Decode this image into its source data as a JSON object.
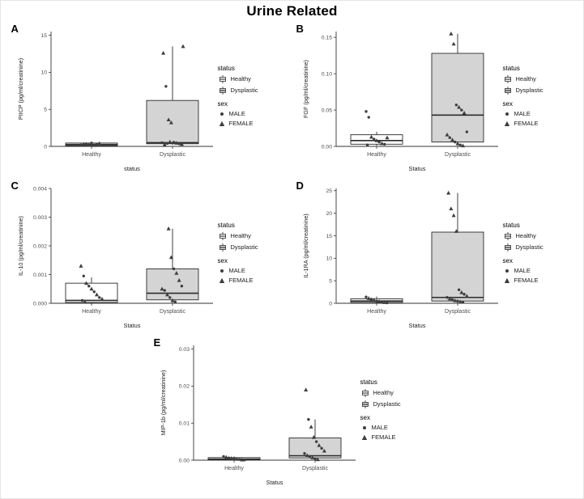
{
  "figure_title": "Urine Related",
  "colors": {
    "healthy_fill": "#ffffff",
    "dysplastic_fill": "#d4d4d4",
    "box_stroke": "#2b2b2b",
    "point_color": "#3d3d3d",
    "axis_color": "#333333",
    "tick_text": "#4d4d4d"
  },
  "legend": {
    "status_title": "status",
    "status_items": [
      "Healthy",
      "Dysplastic"
    ],
    "sex_title": "sex",
    "sex_items": [
      "MALE",
      "FEMALE"
    ]
  },
  "chart_data": [
    {
      "panel": "A",
      "type": "boxplot",
      "ylabel": "PIICP (pg/ml/creatinine)",
      "xlabel": "status",
      "categories": [
        "Healthy",
        "Dysplastic"
      ],
      "ylim": [
        0,
        15.5
      ],
      "ytick_values": [
        0,
        5,
        10,
        15
      ],
      "ytick_labels": [
        "0",
        "5",
        "10",
        "15"
      ],
      "boxes": [
        {
          "category": "Healthy",
          "whisker_low": 0.05,
          "q1": 0.1,
          "median": 0.25,
          "q3": 0.45,
          "whisker_high": 0.6
        },
        {
          "category": "Dysplastic",
          "whisker_low": 0.2,
          "q1": 0.35,
          "median": 0.5,
          "q3": 6.2,
          "whisker_high": 13.5
        }
      ],
      "points": [
        {
          "category": "Healthy",
          "sex": "MALE",
          "value": 0.2
        },
        {
          "category": "Healthy",
          "sex": "FEMALE",
          "value": 0.3
        },
        {
          "category": "Healthy",
          "sex": "MALE",
          "value": 0.35
        },
        {
          "category": "Healthy",
          "sex": "FEMALE",
          "value": 0.25
        },
        {
          "category": "Healthy",
          "sex": "MALE",
          "value": 0.45
        },
        {
          "category": "Healthy",
          "sex": "FEMALE",
          "value": 0.15
        },
        {
          "category": "Healthy",
          "sex": "MALE",
          "value": 0.3
        },
        {
          "category": "Healthy",
          "sex": "FEMALE",
          "value": 0.4
        },
        {
          "category": "Dysplastic",
          "sex": "FEMALE",
          "value": 13.5
        },
        {
          "category": "Dysplastic",
          "sex": "FEMALE",
          "value": 12.6
        },
        {
          "category": "Dysplastic",
          "sex": "MALE",
          "value": 8.1
        },
        {
          "category": "Dysplastic",
          "sex": "FEMALE",
          "value": 3.6
        },
        {
          "category": "Dysplastic",
          "sex": "FEMALE",
          "value": 3.2
        },
        {
          "category": "Dysplastic",
          "sex": "MALE",
          "value": 0.55
        },
        {
          "category": "Dysplastic",
          "sex": "FEMALE",
          "value": 0.45
        },
        {
          "category": "Dysplastic",
          "sex": "MALE",
          "value": 0.35
        },
        {
          "category": "Dysplastic",
          "sex": "FEMALE",
          "value": 0.3
        },
        {
          "category": "Dysplastic",
          "sex": "MALE",
          "value": 0.5
        },
        {
          "category": "Dysplastic",
          "sex": "FEMALE",
          "value": 0.25
        },
        {
          "category": "Dysplastic",
          "sex": "MALE",
          "value": 0.4
        },
        {
          "category": "Dysplastic",
          "sex": "FEMALE",
          "value": 0.6
        }
      ]
    },
    {
      "panel": "B",
      "type": "boxplot",
      "ylabel": "FGF (pg/ml/creatinine)",
      "xlabel": "Status",
      "categories": [
        "Healthy",
        "Dysplastic"
      ],
      "ylim": [
        0,
        0.158
      ],
      "ytick_values": [
        0,
        0.05,
        0.1,
        0.15
      ],
      "ytick_labels": [
        "0.00",
        "0.05",
        "0.10",
        "0.15"
      ],
      "boxes": [
        {
          "category": "Healthy",
          "whisker_low": 0.001,
          "q1": 0.003,
          "median": 0.008,
          "q3": 0.016,
          "whisker_high": 0.02
        },
        {
          "category": "Dysplastic",
          "whisker_low": 0.001,
          "q1": 0.006,
          "median": 0.043,
          "q3": 0.128,
          "whisker_high": 0.155
        }
      ],
      "points": [
        {
          "category": "Healthy",
          "sex": "MALE",
          "value": 0.048
        },
        {
          "category": "Healthy",
          "sex": "MALE",
          "value": 0.04
        },
        {
          "category": "Healthy",
          "sex": "FEMALE",
          "value": 0.013
        },
        {
          "category": "Healthy",
          "sex": "MALE",
          "value": 0.01
        },
        {
          "category": "Healthy",
          "sex": "FEMALE",
          "value": 0.008
        },
        {
          "category": "Healthy",
          "sex": "MALE",
          "value": 0.006
        },
        {
          "category": "Healthy",
          "sex": "FEMALE",
          "value": 0.004
        },
        {
          "category": "Healthy",
          "sex": "MALE",
          "value": 0.003
        },
        {
          "category": "Healthy",
          "sex": "FEMALE",
          "value": 0.012
        },
        {
          "category": "Healthy",
          "sex": "MALE",
          "value": 0.002
        },
        {
          "category": "Dysplastic",
          "sex": "FEMALE",
          "value": 0.155
        },
        {
          "category": "Dysplastic",
          "sex": "FEMALE",
          "value": 0.141
        },
        {
          "category": "Dysplastic",
          "sex": "MALE",
          "value": 0.057
        },
        {
          "category": "Dysplastic",
          "sex": "FEMALE",
          "value": 0.054
        },
        {
          "category": "Dysplastic",
          "sex": "MALE",
          "value": 0.05
        },
        {
          "category": "Dysplastic",
          "sex": "FEMALE",
          "value": 0.046
        },
        {
          "category": "Dysplastic",
          "sex": "MALE",
          "value": 0.02
        },
        {
          "category": "Dysplastic",
          "sex": "FEMALE",
          "value": 0.016
        },
        {
          "category": "Dysplastic",
          "sex": "MALE",
          "value": 0.012
        },
        {
          "category": "Dysplastic",
          "sex": "FEMALE",
          "value": 0.009
        },
        {
          "category": "Dysplastic",
          "sex": "MALE",
          "value": 0.006
        },
        {
          "category": "Dysplastic",
          "sex": "FEMALE",
          "value": 0.004
        },
        {
          "category": "Dysplastic",
          "sex": "MALE",
          "value": 0.002
        },
        {
          "category": "Dysplastic",
          "sex": "FEMALE",
          "value": 0.001
        }
      ]
    },
    {
      "panel": "C",
      "type": "boxplot",
      "ylabel": "IL-10 (pg/ml/creatinine)",
      "xlabel": "Status",
      "categories": [
        "Healthy",
        "Dysplastic"
      ],
      "ylim": [
        0,
        0.004
      ],
      "ytick_values": [
        0,
        0.001,
        0.002,
        0.003,
        0.004
      ],
      "ytick_labels": [
        "0.000",
        "0.001",
        "0.002",
        "0.003",
        "0.004"
      ],
      "boxes": [
        {
          "category": "Healthy",
          "whisker_low": 0.0,
          "q1": 3e-05,
          "median": 0.0001,
          "q3": 0.0007,
          "whisker_high": 0.0009
        },
        {
          "category": "Dysplastic",
          "whisker_low": 2e-05,
          "q1": 0.00012,
          "median": 0.00035,
          "q3": 0.0012,
          "whisker_high": 0.0026
        }
      ],
      "points": [
        {
          "category": "Healthy",
          "sex": "FEMALE",
          "value": 0.0013
        },
        {
          "category": "Healthy",
          "sex": "MALE",
          "value": 0.00095
        },
        {
          "category": "Healthy",
          "sex": "FEMALE",
          "value": 0.0007
        },
        {
          "category": "Healthy",
          "sex": "MALE",
          "value": 0.0006
        },
        {
          "category": "Healthy",
          "sex": "FEMALE",
          "value": 0.0005
        },
        {
          "category": "Healthy",
          "sex": "MALE",
          "value": 0.0004
        },
        {
          "category": "Healthy",
          "sex": "FEMALE",
          "value": 0.0003
        },
        {
          "category": "Healthy",
          "sex": "MALE",
          "value": 0.0002
        },
        {
          "category": "Healthy",
          "sex": "FEMALE",
          "value": 0.00015
        },
        {
          "category": "Healthy",
          "sex": "MALE",
          "value": 0.0001
        },
        {
          "category": "Healthy",
          "sex": "FEMALE",
          "value": 5e-05
        },
        {
          "category": "Dysplastic",
          "sex": "FEMALE",
          "value": 0.0026
        },
        {
          "category": "Dysplastic",
          "sex": "FEMALE",
          "value": 0.0016
        },
        {
          "category": "Dysplastic",
          "sex": "MALE",
          "value": 0.0012
        },
        {
          "category": "Dysplastic",
          "sex": "FEMALE",
          "value": 0.00105
        },
        {
          "category": "Dysplastic",
          "sex": "FEMALE",
          "value": 0.0008
        },
        {
          "category": "Dysplastic",
          "sex": "MALE",
          "value": 0.0006
        },
        {
          "category": "Dysplastic",
          "sex": "FEMALE",
          "value": 0.0005
        },
        {
          "category": "Dysplastic",
          "sex": "MALE",
          "value": 0.00045
        },
        {
          "category": "Dysplastic",
          "sex": "FEMALE",
          "value": 0.0003
        },
        {
          "category": "Dysplastic",
          "sex": "MALE",
          "value": 0.0002
        },
        {
          "category": "Dysplastic",
          "sex": "FEMALE",
          "value": 0.0001
        },
        {
          "category": "Dysplastic",
          "sex": "MALE",
          "value": 5e-05
        }
      ]
    },
    {
      "panel": "D",
      "type": "boxplot",
      "ylabel": "IL-1RA (pg/ml/creatinine)",
      "xlabel": "Status",
      "categories": [
        "Healthy",
        "Dysplastic"
      ],
      "ylim": [
        0,
        25.5
      ],
      "ytick_values": [
        0,
        5,
        10,
        15,
        20,
        25
      ],
      "ytick_labels": [
        "0",
        "5",
        "10",
        "15",
        "20",
        "25"
      ],
      "boxes": [
        {
          "category": "Healthy",
          "whisker_low": 0.05,
          "q1": 0.2,
          "median": 0.5,
          "q3": 1.0,
          "whisker_high": 1.5
        },
        {
          "category": "Dysplastic",
          "whisker_low": 0.1,
          "q1": 0.5,
          "median": 1.3,
          "q3": 15.8,
          "whisker_high": 24.5
        }
      ],
      "points": [
        {
          "category": "Healthy",
          "sex": "MALE",
          "value": 1.4
        },
        {
          "category": "Healthy",
          "sex": "FEMALE",
          "value": 1.1
        },
        {
          "category": "Healthy",
          "sex": "MALE",
          "value": 0.9
        },
        {
          "category": "Healthy",
          "sex": "FEMALE",
          "value": 0.7
        },
        {
          "category": "Healthy",
          "sex": "MALE",
          "value": 0.5
        },
        {
          "category": "Healthy",
          "sex": "FEMALE",
          "value": 0.4
        },
        {
          "category": "Healthy",
          "sex": "MALE",
          "value": 0.3
        },
        {
          "category": "Healthy",
          "sex": "FEMALE",
          "value": 0.2
        },
        {
          "category": "Healthy",
          "sex": "MALE",
          "value": 0.1
        },
        {
          "category": "Dysplastic",
          "sex": "FEMALE",
          "value": 24.5
        },
        {
          "category": "Dysplastic",
          "sex": "FEMALE",
          "value": 21.0
        },
        {
          "category": "Dysplastic",
          "sex": "FEMALE",
          "value": 19.5
        },
        {
          "category": "Dysplastic",
          "sex": "FEMALE",
          "value": 16.0
        },
        {
          "category": "Dysplastic",
          "sex": "MALE",
          "value": 3.0
        },
        {
          "category": "Dysplastic",
          "sex": "FEMALE",
          "value": 2.4
        },
        {
          "category": "Dysplastic",
          "sex": "MALE",
          "value": 2.0
        },
        {
          "category": "Dysplastic",
          "sex": "FEMALE",
          "value": 1.6
        },
        {
          "category": "Dysplastic",
          "sex": "MALE",
          "value": 1.3
        },
        {
          "category": "Dysplastic",
          "sex": "FEMALE",
          "value": 1.0
        },
        {
          "category": "Dysplastic",
          "sex": "MALE",
          "value": 0.8
        },
        {
          "category": "Dysplastic",
          "sex": "FEMALE",
          "value": 0.6
        },
        {
          "category": "Dysplastic",
          "sex": "MALE",
          "value": 0.5
        },
        {
          "category": "Dysplastic",
          "sex": "FEMALE",
          "value": 0.3
        },
        {
          "category": "Dysplastic",
          "sex": "MALE",
          "value": 0.2
        }
      ]
    },
    {
      "panel": "E",
      "type": "boxplot",
      "ylabel": "MIP-1b (pg/ml/creatinine)",
      "xlabel": "Status",
      "categories": [
        "Healthy",
        "Dysplastic"
      ],
      "ylim": [
        0,
        0.031
      ],
      "ytick_values": [
        0,
        0.01,
        0.02,
        0.03
      ],
      "ytick_labels": [
        "0.00",
        "0.01",
        "0.02",
        "0.03"
      ],
      "boxes": [
        {
          "category": "Healthy",
          "whisker_low": 0.0,
          "q1": 0.0001,
          "median": 0.0003,
          "q3": 0.0007,
          "whisker_high": 0.001
        },
        {
          "category": "Dysplastic",
          "whisker_low": 0.0001,
          "q1": 0.0006,
          "median": 0.0012,
          "q3": 0.006,
          "whisker_high": 0.011
        }
      ],
      "points": [
        {
          "category": "Healthy",
          "sex": "MALE",
          "value": 0.001
        },
        {
          "category": "Healthy",
          "sex": "FEMALE",
          "value": 0.0008
        },
        {
          "category": "Healthy",
          "sex": "MALE",
          "value": 0.0006
        },
        {
          "category": "Healthy",
          "sex": "FEMALE",
          "value": 0.0005
        },
        {
          "category": "Healthy",
          "sex": "MALE",
          "value": 0.0004
        },
        {
          "category": "Healthy",
          "sex": "FEMALE",
          "value": 0.0003
        },
        {
          "category": "Healthy",
          "sex": "MALE",
          "value": 0.0002
        },
        {
          "category": "Healthy",
          "sex": "FEMALE",
          "value": 0.0001
        },
        {
          "category": "Healthy",
          "sex": "MALE",
          "value": 5e-05
        },
        {
          "category": "Dysplastic",
          "sex": "FEMALE",
          "value": 0.019
        },
        {
          "category": "Dysplastic",
          "sex": "MALE",
          "value": 0.011
        },
        {
          "category": "Dysplastic",
          "sex": "FEMALE",
          "value": 0.009
        },
        {
          "category": "Dysplastic",
          "sex": "FEMALE",
          "value": 0.0062
        },
        {
          "category": "Dysplastic",
          "sex": "MALE",
          "value": 0.005
        },
        {
          "category": "Dysplastic",
          "sex": "FEMALE",
          "value": 0.004
        },
        {
          "category": "Dysplastic",
          "sex": "MALE",
          "value": 0.0032
        },
        {
          "category": "Dysplastic",
          "sex": "FEMALE",
          "value": 0.0025
        },
        {
          "category": "Dysplastic",
          "sex": "MALE",
          "value": 0.0018
        },
        {
          "category": "Dysplastic",
          "sex": "FEMALE",
          "value": 0.0013
        },
        {
          "category": "Dysplastic",
          "sex": "MALE",
          "value": 0.001
        },
        {
          "category": "Dysplastic",
          "sex": "FEMALE",
          "value": 0.0007
        },
        {
          "category": "Dysplastic",
          "sex": "MALE",
          "value": 0.0004
        },
        {
          "category": "Dysplastic",
          "sex": "FEMALE",
          "value": 0.0002
        }
      ]
    }
  ]
}
